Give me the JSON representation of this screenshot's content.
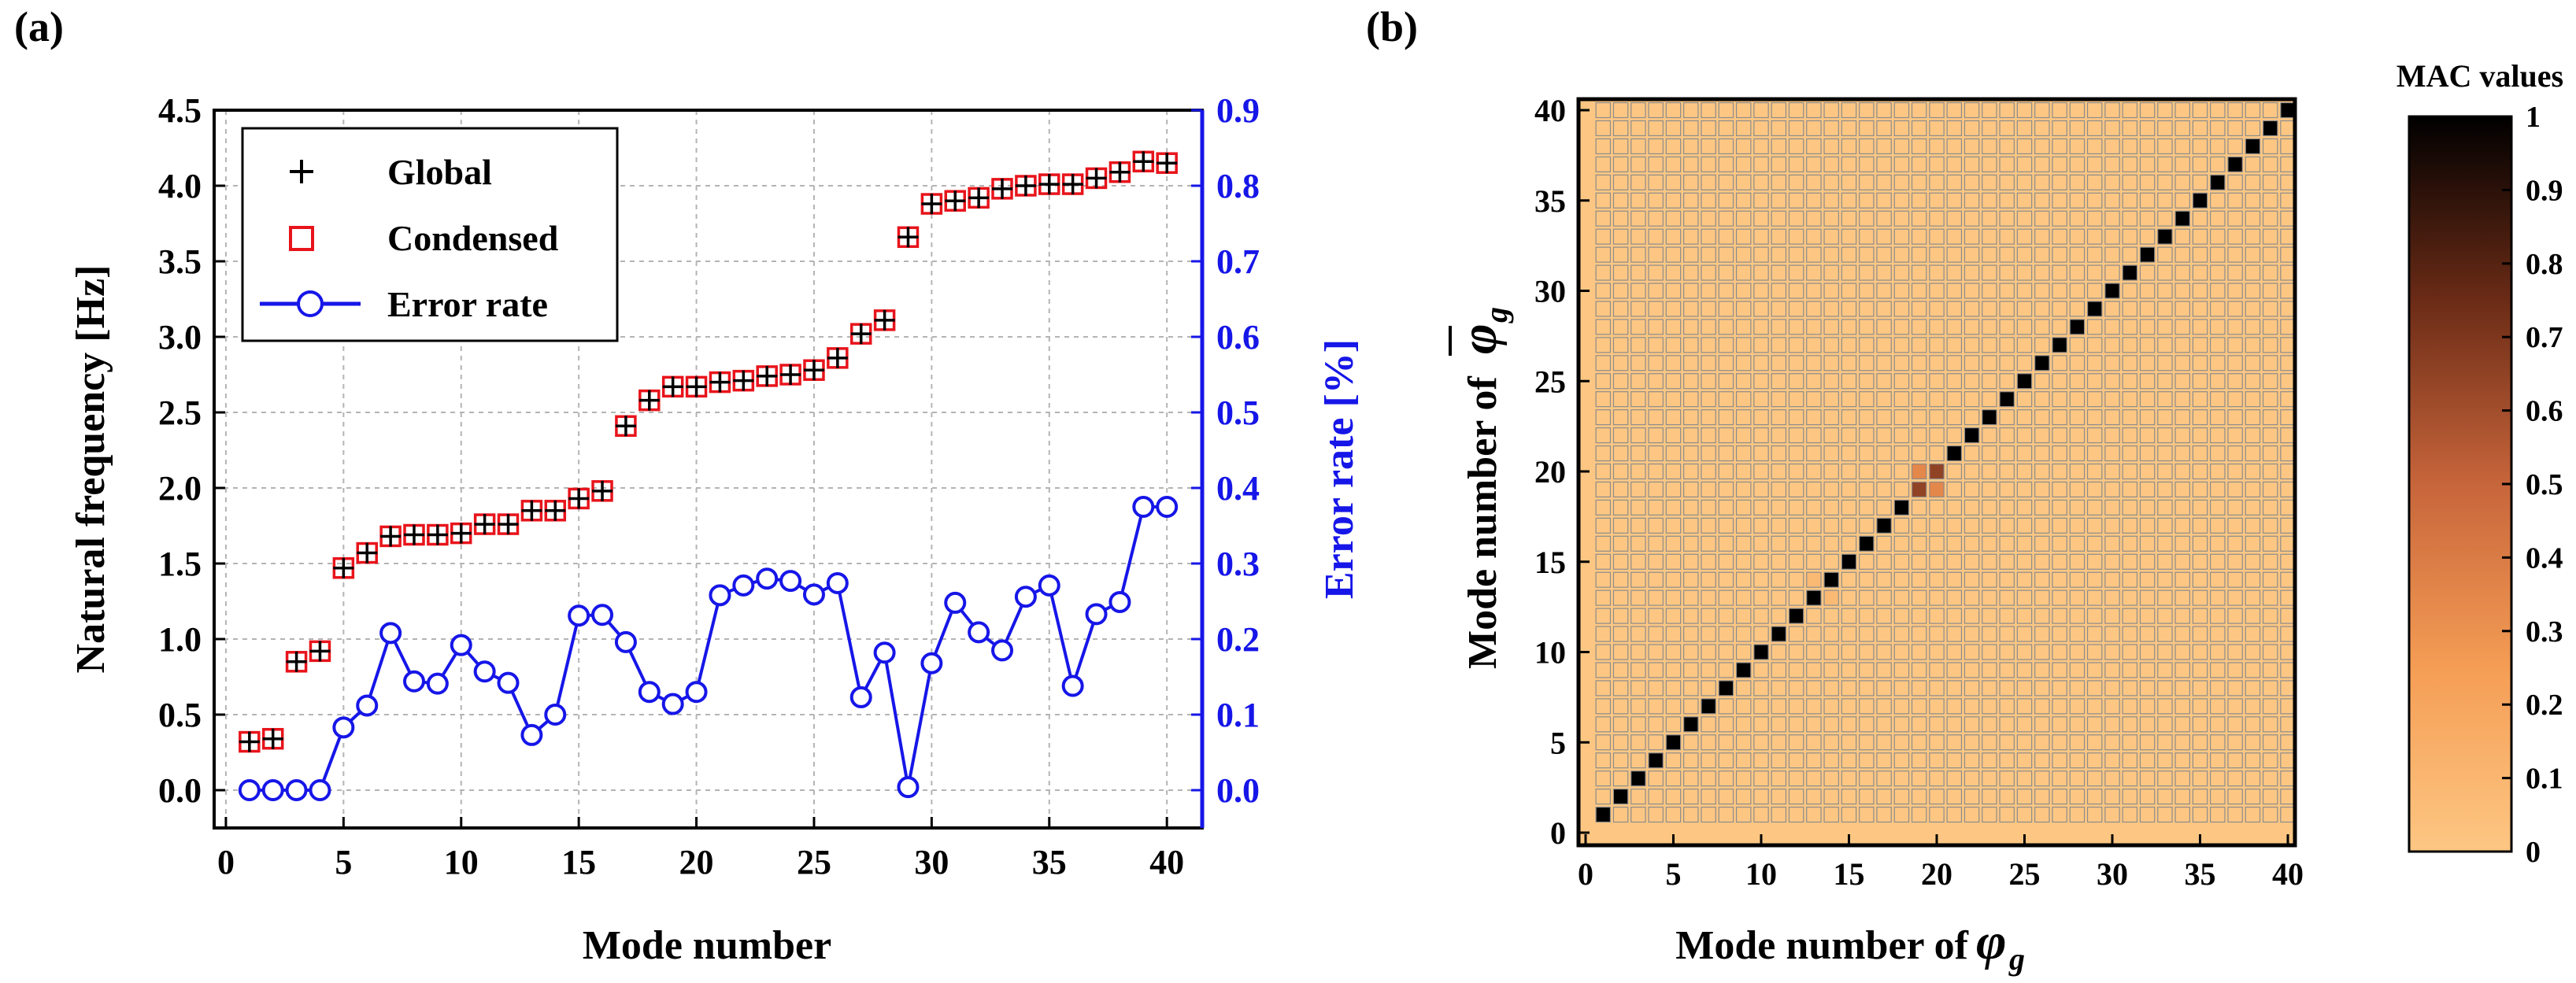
{
  "colors": {
    "global_marker": "#000000",
    "condensed_marker": "#e8141b",
    "error_line": "#1616e8",
    "error_axis": "#1616e8",
    "grid": "#b4b4b4",
    "mac_low": "#fdc783",
    "mac_high": "#000000"
  },
  "chart_data": [
    {
      "type": "scatter+line",
      "panel_label": "(a)",
      "xlabel": "Mode number",
      "ylabel_left": "Natural frequency [Hz]",
      "ylabel_right": "Error rate [%]",
      "xlim": [
        -0.5,
        41.5
      ],
      "ylim_left": [
        -0.25,
        4.5
      ],
      "ylim_right": [
        -0.05,
        0.9
      ],
      "x_ticks": [
        "0",
        "5",
        "10",
        "15",
        "20",
        "25",
        "30",
        "35",
        "40"
      ],
      "y_left_ticks": [
        "0.0",
        "0.5",
        "1.0",
        "1.5",
        "2.0",
        "2.5",
        "3.0",
        "3.5",
        "4.0",
        "4.5"
      ],
      "y_right_ticks": [
        "0.0",
        "0.1",
        "0.2",
        "0.3",
        "0.4",
        "0.5",
        "0.6",
        "0.7",
        "0.8",
        "0.9"
      ],
      "grid": true,
      "legend": {
        "position": "top-left",
        "entries": [
          "Global",
          "Condensed",
          "Error rate"
        ]
      },
      "x": [
        1,
        2,
        3,
        4,
        5,
        6,
        7,
        8,
        9,
        10,
        11,
        12,
        13,
        14,
        15,
        16,
        17,
        18,
        19,
        20,
        21,
        22,
        23,
        24,
        25,
        26,
        27,
        28,
        29,
        30,
        31,
        32,
        33,
        34,
        35,
        36,
        37,
        38,
        39,
        40
      ],
      "series": [
        {
          "name": "Global",
          "marker": "plus",
          "axis": "left",
          "values": [
            0.32,
            0.34,
            0.85,
            0.92,
            1.47,
            1.57,
            1.68,
            1.69,
            1.69,
            1.7,
            1.76,
            1.76,
            1.85,
            1.85,
            1.93,
            1.98,
            2.41,
            2.58,
            2.67,
            2.67,
            2.7,
            2.71,
            2.74,
            2.75,
            2.78,
            2.86,
            3.02,
            3.11,
            3.66,
            3.88,
            3.9,
            3.92,
            3.98,
            4.0,
            4.01,
            4.01,
            4.05,
            4.09,
            4.16,
            4.15
          ]
        },
        {
          "name": "Condensed",
          "marker": "square",
          "axis": "left",
          "values": [
            0.32,
            0.34,
            0.85,
            0.92,
            1.47,
            1.57,
            1.68,
            1.69,
            1.69,
            1.7,
            1.76,
            1.76,
            1.85,
            1.85,
            1.93,
            1.98,
            2.41,
            2.58,
            2.67,
            2.67,
            2.7,
            2.71,
            2.74,
            2.75,
            2.78,
            2.86,
            3.02,
            3.11,
            3.66,
            3.88,
            3.9,
            3.92,
            3.98,
            4.0,
            4.01,
            4.01,
            4.05,
            4.09,
            4.16,
            4.15
          ]
        },
        {
          "name": "Error rate",
          "marker": "circle-line",
          "axis": "right",
          "values": [
            0.0,
            0.0,
            0.0,
            0.0,
            0.083,
            0.112,
            0.208,
            0.144,
            0.141,
            0.192,
            0.157,
            0.142,
            0.073,
            0.1,
            0.231,
            0.232,
            0.196,
            0.13,
            0.114,
            0.13,
            0.258,
            0.271,
            0.28,
            0.277,
            0.259,
            0.274,
            0.123,
            0.182,
            0.004,
            0.168,
            0.248,
            0.209,
            0.185,
            0.256,
            0.271,
            0.138,
            0.233,
            0.249,
            0.375,
            0.375
          ]
        }
      ]
    },
    {
      "type": "heatmap",
      "panel_label": "(b)",
      "xlabel": "Mode number of",
      "xlabel_symbol": "φ",
      "xlabel_sub": "g",
      "ylabel": "Mode number of",
      "ylabel_symbol": "φ",
      "ylabel_sub": "g",
      "n": 40,
      "x_ticks": [
        "0",
        "5",
        "10",
        "15",
        "20",
        "25",
        "30",
        "35",
        "40"
      ],
      "y_ticks": [
        "0",
        "5",
        "10",
        "15",
        "20",
        "25",
        "30",
        "35",
        "40"
      ],
      "colorbar_title": "MAC values",
      "colorbar_ticks": [
        "0",
        "0.1",
        "0.2",
        "0.3",
        "0.4",
        "0.5",
        "0.6",
        "0.7",
        "0.8",
        "0.9",
        "1"
      ],
      "off_diagonal_value": 0.0,
      "diagonal_value": 1.0,
      "special_cells": [
        {
          "i": 19,
          "j": 19,
          "value": 0.65
        },
        {
          "i": 20,
          "j": 20,
          "value": 0.65
        },
        {
          "i": 19,
          "j": 20,
          "value": 0.35
        },
        {
          "i": 20,
          "j": 19,
          "value": 0.35
        },
        {
          "i": 13,
          "j": 14,
          "value": 0.08
        },
        {
          "i": 14,
          "j": 13,
          "value": 0.08
        }
      ]
    }
  ]
}
